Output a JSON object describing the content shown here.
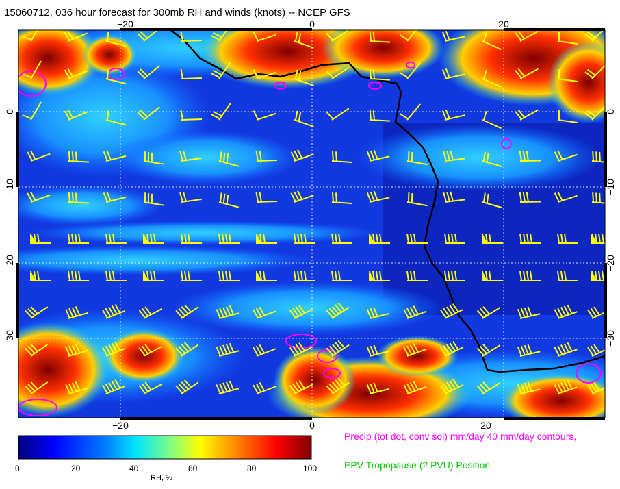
{
  "title": "15060712, 036 hour forecast for 300mb RH and winds (knots) -- NCEP GFS",
  "map": {
    "lon_ticks": [
      "−20",
      "0",
      "20"
    ],
    "lat_ticks": [
      "0",
      "−10",
      "−20",
      "−30"
    ]
  },
  "colorbar": {
    "label": "RH, %",
    "ticks": [
      "0",
      "20",
      "40",
      "60",
      "80",
      "100"
    ],
    "colors": [
      "#00007f",
      "#0000ff",
      "#0080ff",
      "#00ffff",
      "#80ff80",
      "#ffff00",
      "#ff8000",
      "#ff0000",
      "#7f0000"
    ]
  },
  "legend": {
    "precip": "Precip (tot dot, conv sol) mm/day 40 mm/day contours,",
    "epv": "EPV Tropopause (2 PVU) Position"
  },
  "colors": {
    "wind_barbs": "#ffff00",
    "precip_contours": "#ff00ff",
    "coastline": "#000000",
    "epv": "#00cc00"
  }
}
